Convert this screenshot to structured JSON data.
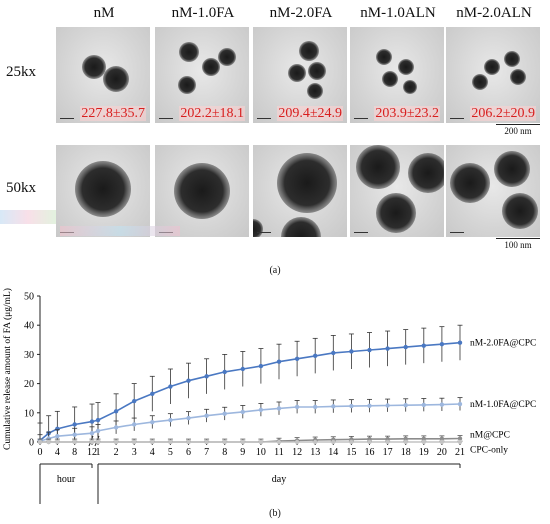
{
  "figure": {
    "columns": [
      "nM",
      "nM-1.0FA",
      "nM-2.0FA",
      "nM-1.0ALN",
      "nM-2.0ALN"
    ],
    "rows": [
      "25kx",
      "50kx"
    ],
    "sizes": [
      "227.8±35.7",
      "202.2±18.1",
      "209.4±24.9",
      "203.9±23.2",
      "206.2±20.9"
    ],
    "scalebar_25kx": "200 nm",
    "scalebar_50kx": "100 nm",
    "caption_a": "(a)",
    "caption_b": "(b)"
  },
  "chart_data": {
    "type": "line",
    "ylabel": "Cumulative release amount of FA (μg/mL)",
    "ylim": [
      0,
      50
    ],
    "yticks": [
      "0",
      "10",
      "20",
      "30",
      "40",
      "50"
    ],
    "hour_ticks": [
      "0",
      "4",
      "8",
      "12"
    ],
    "day_ticks": [
      "1",
      "2",
      "3",
      "4",
      "5",
      "6",
      "7",
      "8",
      "9",
      "10",
      "11",
      "12",
      "13",
      "14",
      "15",
      "16",
      "17",
      "18",
      "19",
      "20",
      "21"
    ],
    "group_labels": [
      "hour",
      "day"
    ],
    "hour_x": [
      0,
      2,
      4,
      8,
      12
    ],
    "day_x": [
      1,
      2,
      3,
      4,
      5,
      6,
      7,
      8,
      9,
      10,
      11,
      12,
      13,
      14,
      15,
      16,
      17,
      18,
      19,
      20,
      21
    ],
    "series": [
      {
        "name": "nM-2.0FA@CPC",
        "color": "#4a78c2",
        "hour": [
          0.5,
          3.0,
          4.5,
          6.0,
          7.0
        ],
        "day": [
          7.5,
          10.5,
          14.0,
          16.5,
          19.0,
          21.0,
          22.5,
          24.0,
          25.0,
          26.0,
          27.5,
          28.5,
          29.5,
          30.5,
          31.0,
          31.5,
          32.0,
          32.5,
          33.0,
          33.5,
          34.0
        ],
        "err": 6
      },
      {
        "name": "nM-1.0FA@CPC",
        "color": "#9db7de",
        "hour": [
          0.3,
          1.2,
          2.0,
          2.5,
          3.0
        ],
        "day": [
          3.8,
          5.0,
          6.0,
          6.8,
          7.5,
          8.2,
          9.0,
          9.7,
          10.3,
          11.0,
          11.5,
          12.0,
          12.0,
          12.2,
          12.3,
          12.4,
          12.5,
          12.6,
          12.7,
          12.8,
          13.0
        ],
        "err": 2.2
      },
      {
        "name": "nM@CPC",
        "color": "#8c8c8c",
        "hour": [
          0,
          0,
          0,
          0,
          0
        ],
        "day": [
          0,
          0,
          0,
          0,
          0,
          0,
          0,
          0,
          0,
          0,
          0.3,
          0.5,
          0.7,
          0.8,
          0.9,
          1.0,
          1.0,
          1.1,
          1.1,
          1.1,
          1.2
        ],
        "err": 1.0
      },
      {
        "name": "CPC-only",
        "color": "#c4c4c4",
        "hour": [
          0,
          0,
          0,
          0,
          0
        ],
        "day": [
          0,
          0,
          0,
          0,
          0,
          0,
          0,
          0,
          0,
          0,
          0,
          0,
          0,
          0,
          0,
          0,
          0,
          0,
          0,
          0,
          0
        ],
        "err": 0.3
      }
    ]
  }
}
